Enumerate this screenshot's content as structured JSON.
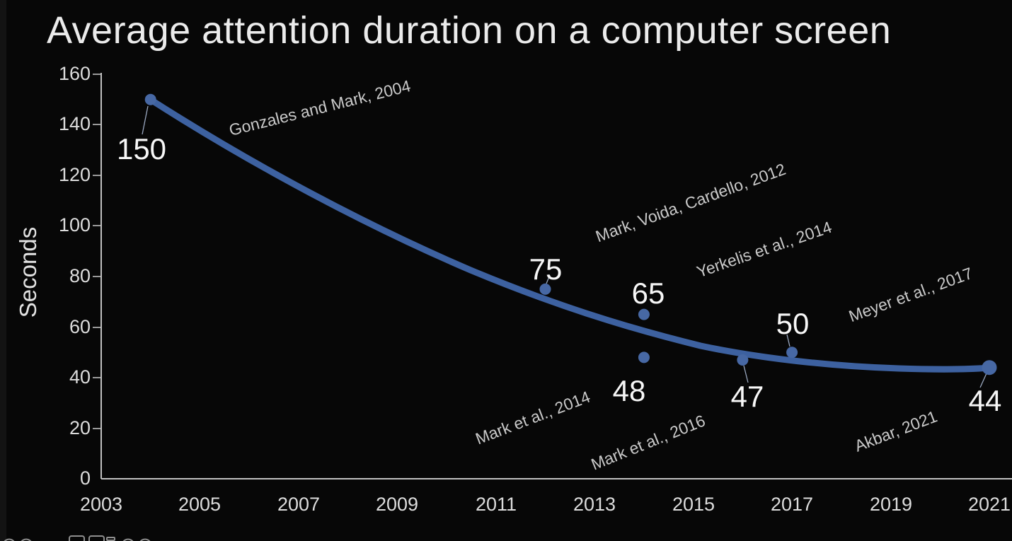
{
  "slide": {
    "title": "Average attention duration on a computer screen"
  },
  "chart_data": {
    "type": "scatter",
    "title": "Average attention duration on a computer screen",
    "xlabel": "",
    "ylabel": "Seconds",
    "xlim": [
      2003,
      2021
    ],
    "ylim": [
      0,
      160
    ],
    "grid": false,
    "legend": "none",
    "x_ticks": [
      "2003",
      "2005",
      "2007",
      "2009",
      "2011",
      "2013",
      "2015",
      "2017",
      "2019",
      "2021"
    ],
    "y_ticks": [
      "160",
      "140",
      "120",
      "100",
      "80",
      "60",
      "40",
      "20",
      "0"
    ],
    "points": [
      {
        "year": 2004,
        "value": 150,
        "study": "Gonzales and Mark, 2004"
      },
      {
        "year": 2012,
        "value": 75,
        "study": "Mark, Voida, Cardello, 2012"
      },
      {
        "year": 2014,
        "value": 65,
        "study": "Yerkelis et al., 2014"
      },
      {
        "year": 2014,
        "value": 48,
        "study": "Mark et al., 2014"
      },
      {
        "year": 2016,
        "value": 47,
        "study": "Mark et al., 2016"
      },
      {
        "year": 2017,
        "value": 50,
        "study": "Meyer et al., 2017"
      },
      {
        "year": 2021,
        "value": 44,
        "study": "Akbar, 2021"
      }
    ],
    "trendline": {
      "shape": "smooth decaying curve",
      "start": {
        "year": 2004,
        "value": 150
      },
      "end": {
        "year": 2021,
        "value": 44
      }
    },
    "colors": {
      "curve": "#3d61a0",
      "point": "#4768a4",
      "axis": "#c0c0c0",
      "value_text": "#f7f7f7",
      "annotation_text": "#c9c9c9",
      "background": "#070707"
    }
  },
  "bottom_toolbar": {
    "note": "partially cropped control icons at bottom-left edge",
    "icons": [
      "circle",
      "circle",
      "people",
      "rounded-rect",
      "rounded-rect",
      "dash",
      "circle",
      "circle"
    ]
  }
}
